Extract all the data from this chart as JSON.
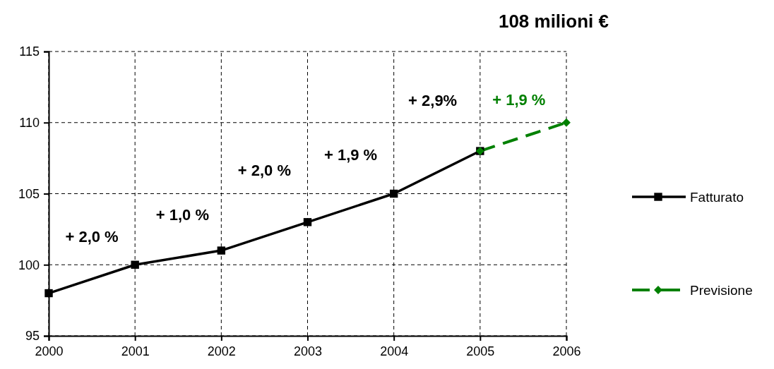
{
  "chart_data": {
    "type": "line",
    "title": "108 milioni €",
    "xlim": [
      2000,
      2006
    ],
    "xticks": [
      2000,
      2001,
      2002,
      2003,
      2004,
      2005,
      2006
    ],
    "ylim": [
      95,
      115
    ],
    "yticks": [
      95,
      100,
      105,
      110,
      115
    ],
    "grid": true,
    "legend": "right",
    "series": [
      {
        "name": "Fatturato",
        "color": "#000000",
        "x": [
          2000,
          2001,
          2002,
          2003,
          2004,
          2005
        ],
        "values": [
          98,
          100,
          101,
          103,
          105,
          108
        ],
        "marker": "square",
        "line_style": "solid"
      },
      {
        "name": "Previsione",
        "color": "#008000",
        "x": [
          2005,
          2006
        ],
        "values": [
          108,
          110
        ],
        "marker": "diamond",
        "line_style": "dashed"
      }
    ],
    "annotations": [
      "+ 2,0 %",
      "+ 1,0 %",
      "+ 2,0 %",
      "+ 1,9 %",
      "+ 2,9%",
      "+ 1,9 %"
    ]
  }
}
